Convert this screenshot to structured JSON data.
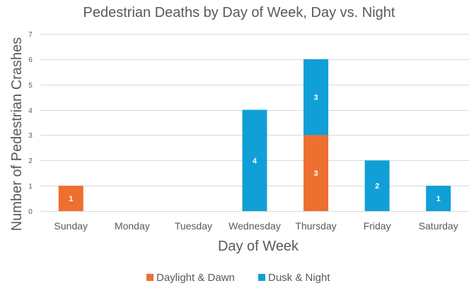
{
  "chart_data": {
    "type": "bar",
    "stacked": true,
    "title": "Pedestrian Deaths by Day of Week, Day vs. Night",
    "xlabel": "Day of Week",
    "ylabel": "Number of Pedestrian Crashes",
    "categories": [
      "Sunday",
      "Monday",
      "Tuesday",
      "Wednesday",
      "Thursday",
      "Friday",
      "Saturday"
    ],
    "series": [
      {
        "name": "Daylight & Dawn",
        "color": "#ED7031",
        "values": [
          1,
          0,
          0,
          0,
          3,
          0,
          0
        ]
      },
      {
        "name": "Dusk & Night",
        "color": "#119FD7",
        "values": [
          0,
          0,
          0,
          4,
          3,
          2,
          1
        ]
      }
    ],
    "ylim": [
      0,
      7
    ],
    "yticks": [
      0,
      1,
      2,
      3,
      4,
      5,
      6,
      7
    ],
    "grid": true,
    "legend": "bottom",
    "data_labels": true
  }
}
